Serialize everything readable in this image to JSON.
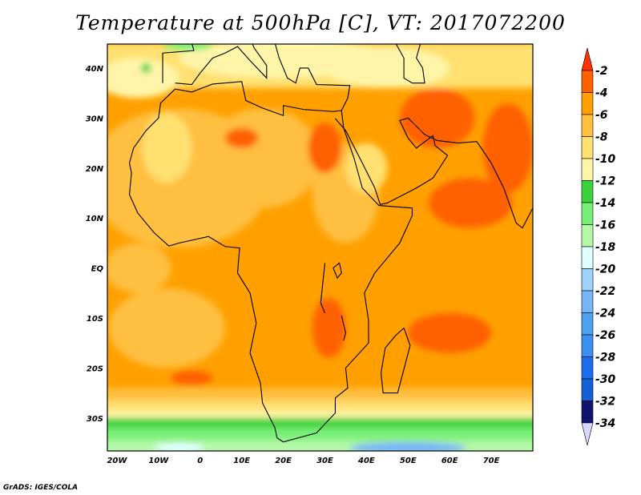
{
  "title": "Temperature at 500hPa [C], VT: 2017072200",
  "credit": "GrADS: IGES/COLA",
  "map": {
    "lat_labels": [
      "40N",
      "30N",
      "20N",
      "10N",
      "EQ",
      "10S",
      "20S",
      "30S"
    ],
    "lat_values": [
      40,
      30,
      20,
      10,
      0,
      -10,
      -20,
      -30
    ],
    "lon_labels": [
      "20W",
      "10W",
      "0",
      "10E",
      "20E",
      "30E",
      "40E",
      "50E",
      "60E",
      "70E"
    ],
    "lon_values": [
      -20,
      -10,
      0,
      10,
      20,
      30,
      40,
      50,
      60,
      70
    ],
    "lon_range": [
      -22.3,
      80
    ],
    "lat_range": [
      -36.6,
      44.8
    ]
  },
  "colorbar": {
    "labels": [
      "-2",
      "-4",
      "-6",
      "-8",
      "-10",
      "-12",
      "-14",
      "-16",
      "-18",
      "-20",
      "-22",
      "-24",
      "-26",
      "-28",
      "-30",
      "-32",
      "-34"
    ],
    "above_color": "#ff3300",
    "below_color": "#d8d8ff",
    "colors": [
      "#ff6000",
      "#ffa000",
      "#ffbf40",
      "#ffe070",
      "#fff5a8",
      "#3cd23c",
      "#78f078",
      "#b4f8a8",
      "#e0ffff",
      "#a0d2fa",
      "#78b4f8",
      "#50a0f0",
      "#3c8ff0",
      "#1e6eeb",
      "#1460d2",
      "#10146e"
    ]
  }
}
